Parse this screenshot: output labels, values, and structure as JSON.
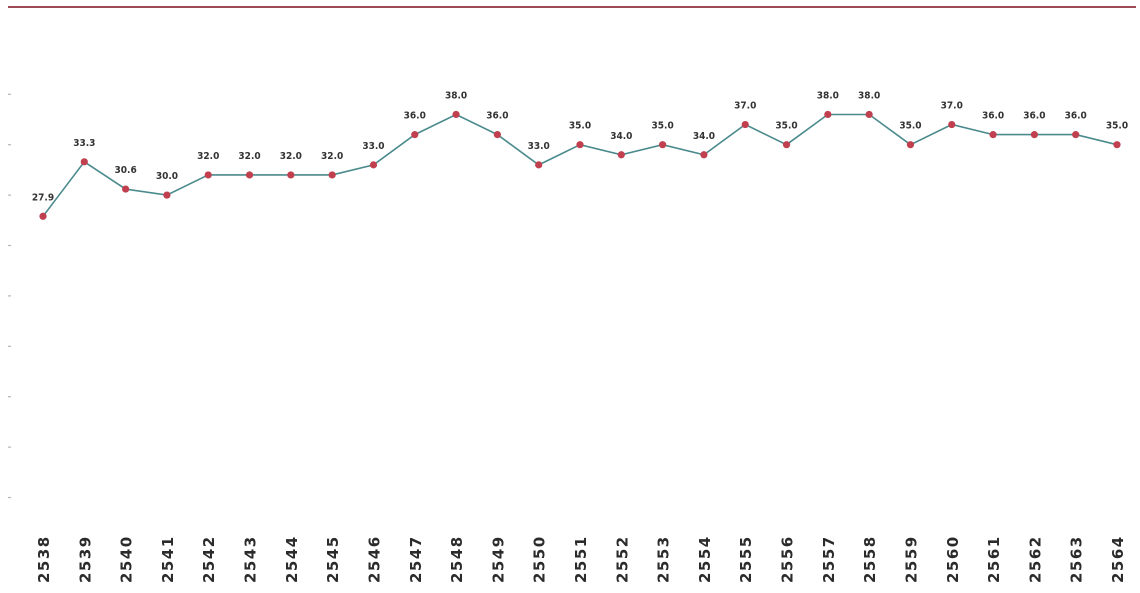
{
  "chart_data": {
    "type": "line",
    "title": "",
    "xlabel": "",
    "ylabel": "",
    "categories": [
      "2538",
      "2539",
      "2540",
      "2541",
      "2542",
      "2543",
      "2544",
      "2545",
      "2546",
      "2547",
      "2548",
      "2549",
      "2550",
      "2551",
      "2552",
      "2553",
      "2554",
      "2555",
      "2556",
      "2557",
      "2558",
      "2559",
      "2560",
      "2561",
      "2562",
      "2563",
      "2564"
    ],
    "series": [
      {
        "values": [
          27.9,
          33.3,
          30.6,
          30.0,
          32.0,
          32.0,
          32.0,
          32.0,
          33.0,
          36.0,
          38.0,
          36.0,
          33.0,
          35.0,
          34.0,
          35.0,
          34.0,
          37.0,
          35.0,
          38.0,
          38.0,
          35.0,
          37.0,
          36.0,
          36.0,
          36.0,
          35.0
        ],
        "labels": [
          "27.9",
          "33.3",
          "30.6",
          "30.0",
          "32.0",
          "32.0",
          "32.0",
          "32.0",
          "33.0",
          "36.0",
          "38.0",
          "36.0",
          "33.0",
          "35.0",
          "34.0",
          "35.0",
          "34.0",
          "37.0",
          "35.0",
          "38.0",
          "38.0",
          "35.0",
          "37.0",
          "36.0",
          "36.0",
          "36.0",
          "35.0"
        ]
      }
    ],
    "ylim": [
      0,
      45
    ],
    "grid": false,
    "legend": "none",
    "colors": {
      "line": "#4a8a8c",
      "marker": "#c0404f",
      "top_rule": "#9c4a56"
    }
  }
}
